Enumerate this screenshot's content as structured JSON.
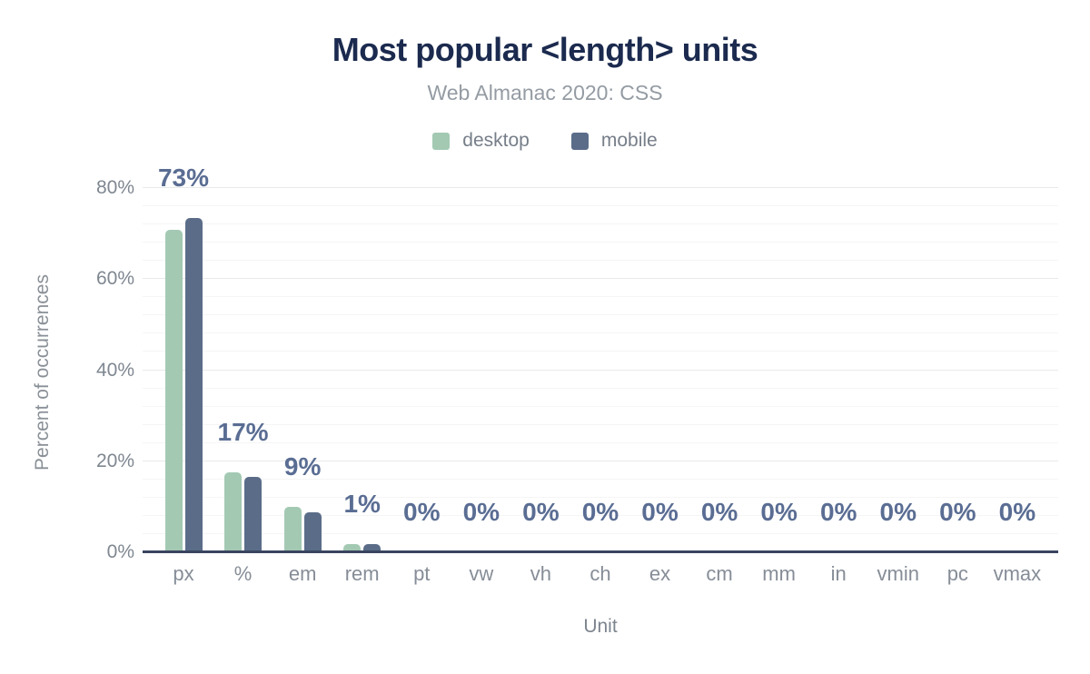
{
  "header": {
    "title": "Most popular <length> units",
    "subtitle": "Web Almanac 2020: CSS"
  },
  "chart_data": {
    "type": "bar",
    "title": "Most popular <length> units",
    "subtitle": "Web Almanac 2020: CSS",
    "categories": [
      "px",
      "%",
      "em",
      "rem",
      "pt",
      "vw",
      "vh",
      "ch",
      "ex",
      "cm",
      "mm",
      "in",
      "vmin",
      "pc",
      "vmax"
    ],
    "series": [
      {
        "name": "desktop",
        "color": "#a3c9b3",
        "values": [
          70.9,
          17.6,
          10.0,
          1.2,
          0,
          0,
          0,
          0,
          0,
          0,
          0,
          0,
          0,
          0,
          0
        ]
      },
      {
        "name": "mobile",
        "color": "#5a6c88",
        "values": [
          73.4,
          16.6,
          8.8,
          1.3,
          0,
          0,
          0,
          0,
          0,
          0,
          0,
          0,
          0,
          0,
          0
        ]
      }
    ],
    "bar_labels": [
      "73%",
      "17%",
      "9%",
      "1%",
      "0%",
      "0%",
      "0%",
      "0%",
      "0%",
      "0%",
      "0%",
      "0%",
      "0%",
      "0%",
      "0%"
    ],
    "xlabel": "Unit",
    "ylabel": "Percent of occurrences",
    "yticks": [
      "0%",
      "20%",
      "40%",
      "60%",
      "80%"
    ],
    "ylim": [
      0,
      80
    ],
    "grid": "horizontal; major lines every 20%, faint minor lines every 4%",
    "legend_position": "top"
  },
  "colors": {
    "title_text": "#1b2a4e",
    "subtitle_text": "#949ba3",
    "data_label_text": "#5a6d93",
    "desktop_bar": "#a3c9b3",
    "mobile_bar": "#5a6c88",
    "axis_line": "#39455e",
    "tick_text": "#7f8791",
    "major_gridline": "#e8e9ea",
    "minor_gridline": "#f5f5f6"
  }
}
